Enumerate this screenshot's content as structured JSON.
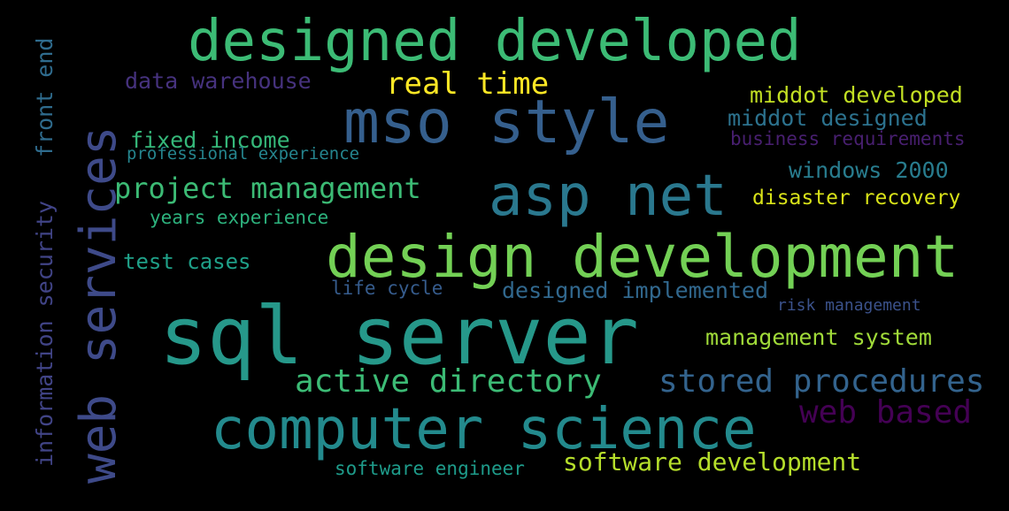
{
  "words": [
    {
      "text": "sql server",
      "color": "#26988a"
    },
    {
      "text": "design development",
      "color": "#73d055"
    },
    {
      "text": "computer science",
      "color": "#238a8d"
    },
    {
      "text": "designed developed",
      "color": "#3cbb75"
    },
    {
      "text": "mso style",
      "color": "#355f8d"
    },
    {
      "text": "asp net",
      "color": "#2a788e"
    },
    {
      "text": "web services",
      "color": "#3e4a89"
    },
    {
      "text": "active directory",
      "color": "#3cbb75"
    },
    {
      "text": "stored procedures",
      "color": "#33638d"
    },
    {
      "text": "web based",
      "color": "#440154"
    },
    {
      "text": "project management",
      "color": "#3cbb75"
    },
    {
      "text": "real time",
      "color": "#fde725"
    },
    {
      "text": "software development",
      "color": "#b5de2b"
    },
    {
      "text": "management system",
      "color": "#a0da39"
    },
    {
      "text": "middot developed",
      "color": "#c2df23"
    },
    {
      "text": "middot designed",
      "color": "#2c728e"
    },
    {
      "text": "data warehouse",
      "color": "#46327e"
    },
    {
      "text": "fixed income",
      "color": "#35b779"
    },
    {
      "text": "windows 2000",
      "color": "#287c8e"
    },
    {
      "text": "disaster recovery",
      "color": "#d8e219"
    },
    {
      "text": "business requirements",
      "color": "#481f70"
    },
    {
      "text": "test cases",
      "color": "#1fa088"
    },
    {
      "text": "designed implemented",
      "color": "#31688e"
    },
    {
      "text": "years experience",
      "color": "#2db27d"
    },
    {
      "text": "life cycle",
      "color": "#365c8d"
    },
    {
      "text": "professional experience",
      "color": "#25858e"
    },
    {
      "text": "software engineer",
      "color": "#1e9b8a"
    },
    {
      "text": "risk management",
      "color": "#3b528b"
    },
    {
      "text": "information security",
      "color": "#414487"
    },
    {
      "text": "front end",
      "color": "#2f6c8e"
    }
  ]
}
